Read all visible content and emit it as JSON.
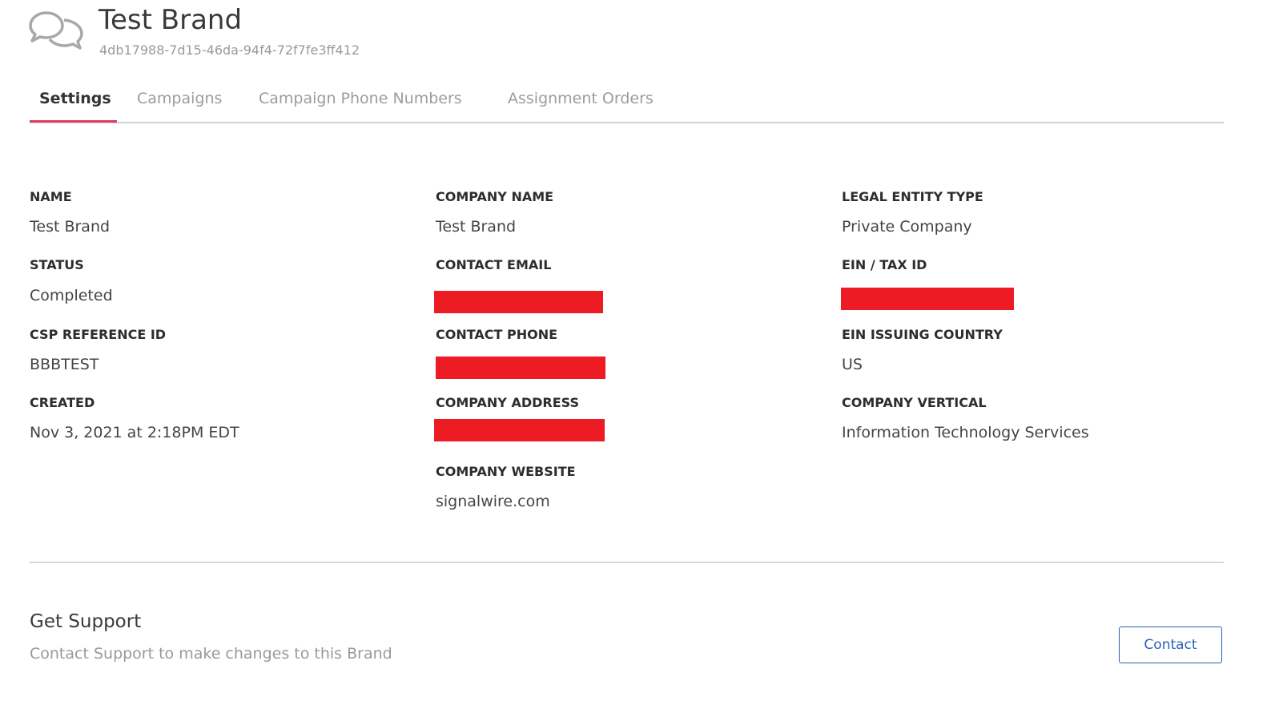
{
  "header": {
    "title": "Test Brand",
    "id": "4db17988-7d15-46da-94f4-72f7fe3ff412",
    "icon": "chat-bubbles-icon"
  },
  "tabs": [
    {
      "label": "Settings",
      "active": true
    },
    {
      "label": "Campaigns"
    },
    {
      "label": "Campaign Phone Numbers"
    },
    {
      "label": "Assignment Orders"
    }
  ],
  "fields": {
    "name": {
      "label": "NAME",
      "value": "Test Brand"
    },
    "status": {
      "label": "STATUS",
      "value": "Completed"
    },
    "csp": {
      "label": "CSP REFERENCE ID",
      "value": "BBBTEST"
    },
    "created": {
      "label": "CREATED",
      "value": "Nov 3, 2021 at 2:18PM EDT"
    },
    "company_name": {
      "label": "COMPANY NAME",
      "value": "Test Brand"
    },
    "contact_email": {
      "label": "CONTACT EMAIL"
    },
    "contact_phone": {
      "label": "CONTACT PHONE"
    },
    "company_address": {
      "label": "COMPANY ADDRESS"
    },
    "company_website": {
      "label": "COMPANY WEBSITE",
      "value": "signalwire.com"
    },
    "legal_entity": {
      "label": "LEGAL ENTITY TYPE",
      "value": "Private Company"
    },
    "ein": {
      "label": "EIN / TAX ID"
    },
    "ein_country": {
      "label": "EIN ISSUING COUNTRY",
      "value": "US"
    },
    "vertical": {
      "label": "COMPANY VERTICAL",
      "value": "Information Technology Services"
    }
  },
  "redaction_color": "#ed1c24",
  "support": {
    "title": "Get Support",
    "text": "Contact Support to make changes to this Brand",
    "button": "Contact"
  }
}
